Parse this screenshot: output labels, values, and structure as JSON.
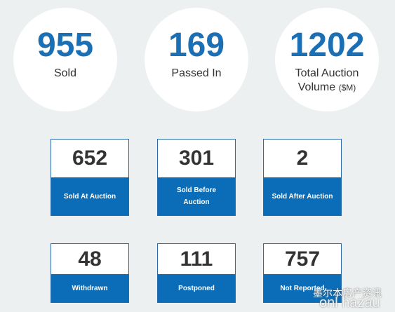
{
  "summary": [
    {
      "value": 955,
      "label": "Sold"
    },
    {
      "value": 169,
      "label": "Passed In"
    },
    {
      "value": 1202,
      "label": "Total Auction Volume",
      "unit": "($M)"
    }
  ],
  "boxes": [
    {
      "value": 652,
      "label": "Sold At Auction"
    },
    {
      "value": 301,
      "label": "Sold Before Auction"
    },
    {
      "value": 2,
      "label": "Sold After Auction"
    },
    {
      "value": 48,
      "label": "Withdrawn"
    },
    {
      "value": 111,
      "label": "Postponed"
    },
    {
      "value": 757,
      "label": "Not Reported"
    }
  ],
  "watermark": {
    "text": "墨尔本房产资讯",
    "subtext": "onl hazau"
  }
}
